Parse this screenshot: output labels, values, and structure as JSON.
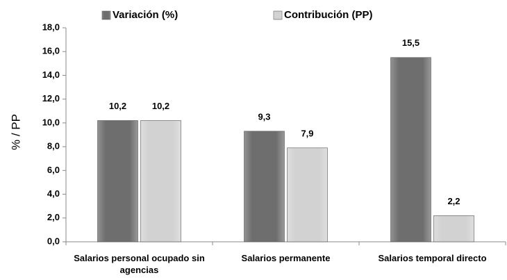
{
  "chart_data": {
    "type": "bar",
    "y_label": "% / PP",
    "categories": [
      "Salarios personal ocupado sin agencias",
      "Salarios permanente",
      "Salarios temporal directo"
    ],
    "series": [
      {
        "name": "Variación (%)",
        "color": "#6e6e6e",
        "values": [
          10.2,
          9.3,
          15.5
        ],
        "value_labels": [
          "10,2",
          "9,3",
          "15,5"
        ]
      },
      {
        "name": "Contribución (PP)",
        "color": "#d2d2d2",
        "values": [
          10.2,
          7.9,
          2.2
        ],
        "value_labels": [
          "10,2",
          "7,9",
          "2,2"
        ]
      }
    ],
    "ylim": [
      0,
      18
    ],
    "yticks": [
      {
        "value": 0,
        "label": "0,0"
      },
      {
        "value": 2,
        "label": "2,0"
      },
      {
        "value": 4,
        "label": "4,0"
      },
      {
        "value": 6,
        "label": "6,0"
      },
      {
        "value": 8,
        "label": "8,0"
      },
      {
        "value": 10,
        "label": "10,0"
      },
      {
        "value": 12,
        "label": "12,0"
      },
      {
        "value": 14,
        "label": "14,0"
      },
      {
        "value": 16,
        "label": "16,0"
      },
      {
        "value": 18,
        "label": "18,0"
      }
    ],
    "grid": false,
    "legend": "top"
  }
}
